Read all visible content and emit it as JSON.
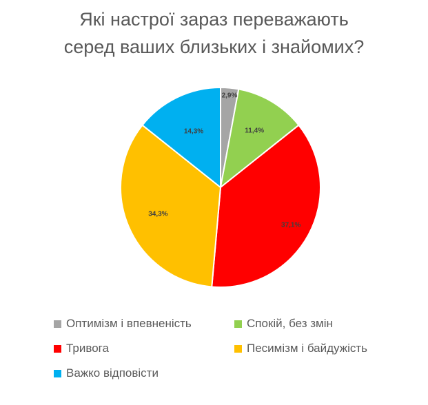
{
  "chart_data": {
    "type": "pie",
    "title": [
      "Які настрої зараз переважають",
      "серед ваших близьких і знайомих?"
    ],
    "categories": [
      "Оптимізм і впевненість",
      "Спокій, без змін",
      "Тривога",
      "Песимізм і байдужість",
      "Важко відповісти"
    ],
    "values": [
      2.9,
      11.4,
      37.1,
      34.3,
      14.3
    ],
    "data_labels": [
      "2,9%",
      "11,4%",
      "37,1%",
      "34,3%",
      "14,3%"
    ],
    "colors": [
      "#a5a5a5",
      "#92d050",
      "#ff0000",
      "#ffc000",
      "#00b0f0"
    ],
    "legend_position": "bottom"
  }
}
